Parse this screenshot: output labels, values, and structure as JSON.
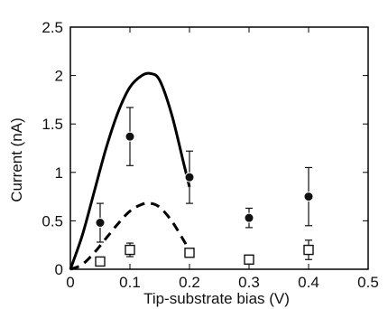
{
  "chart_data": {
    "type": "scatter",
    "title": "",
    "xlabel": "Tip-substrate bias (V)",
    "ylabel": "Current (nA)",
    "xlim": [
      0,
      0.5
    ],
    "ylim": [
      0,
      2.5
    ],
    "x_ticks": [
      "0",
      "0.1",
      "0.2",
      "0.3",
      "0.4",
      "0.5"
    ],
    "y_ticks": [
      "0",
      "0.5",
      "1",
      "1.5",
      "2",
      "2.5"
    ],
    "grid": false,
    "legend": "none",
    "series": [
      {
        "marker": "filled-circle",
        "color": "#111111",
        "points": [
          {
            "x": 0.05,
            "y": 0.48,
            "err": 0.2
          },
          {
            "x": 0.1,
            "y": 1.37,
            "err": 0.3
          },
          {
            "x": 0.2,
            "y": 0.95,
            "err": 0.27
          },
          {
            "x": 0.3,
            "y": 0.53,
            "err": 0.1
          },
          {
            "x": 0.4,
            "y": 0.75,
            "err": 0.3
          }
        ]
      },
      {
        "marker": "open-square",
        "color": "#111111",
        "points": [
          {
            "x": 0.05,
            "y": 0.08,
            "err": 0
          },
          {
            "x": 0.1,
            "y": 0.2,
            "err": 0.07
          },
          {
            "x": 0.2,
            "y": 0.17,
            "err": 0
          },
          {
            "x": 0.3,
            "y": 0.1,
            "err": 0
          },
          {
            "x": 0.4,
            "y": 0.2,
            "err": 0.1
          }
        ]
      },
      {
        "line": "solid",
        "color": "#000000",
        "x": [
          0,
          0.02,
          0.04,
          0.06,
          0.08,
          0.1,
          0.12,
          0.135,
          0.15,
          0.17,
          0.19,
          0.2
        ],
        "y": [
          0,
          0.35,
          0.8,
          1.25,
          1.62,
          1.88,
          2.0,
          2.02,
          1.95,
          1.6,
          1.1,
          0.85
        ]
      },
      {
        "line": "dashed",
        "color": "#000000",
        "x": [
          0,
          0.02,
          0.04,
          0.06,
          0.08,
          0.1,
          0.12,
          0.135,
          0.15,
          0.17,
          0.19,
          0.2
        ],
        "y": [
          0,
          0.05,
          0.17,
          0.32,
          0.47,
          0.6,
          0.67,
          0.68,
          0.64,
          0.5,
          0.3,
          0.2
        ]
      }
    ]
  }
}
